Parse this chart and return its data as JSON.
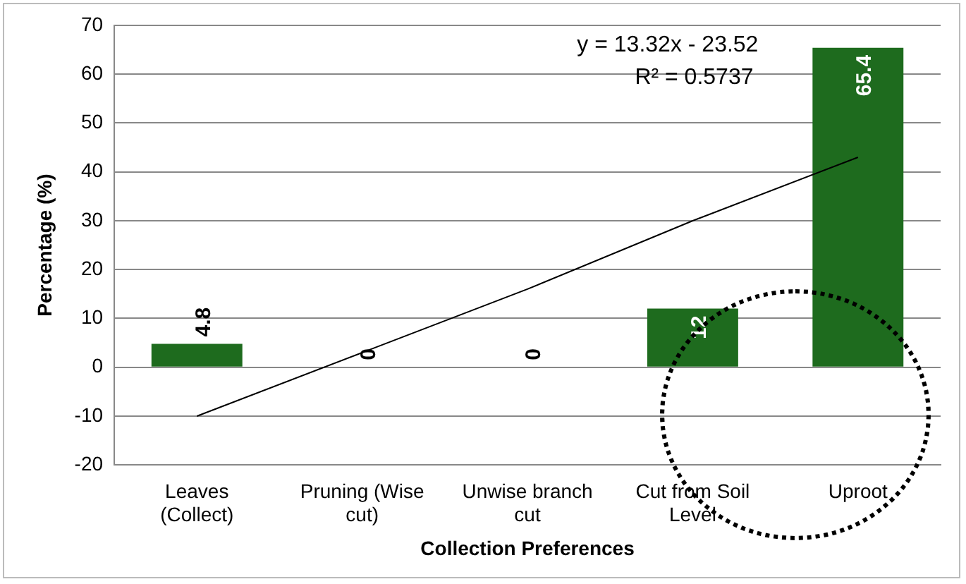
{
  "chart_data": {
    "type": "bar",
    "xlabel": "Collection Preferences",
    "ylabel": "Percentage (%)",
    "categories": [
      "Leaves (Collect)",
      "Pruning (Wise cut)",
      "Unwise branch cut",
      "Cut from Soil Level",
      "Uproot"
    ],
    "series": [
      {
        "color": "#1e6b1e",
        "values": [
          4.8,
          0,
          0,
          12,
          65.4
        ],
        "value_labels": [
          "4.8",
          "0",
          "0",
          "12",
          "65.4"
        ]
      },
      {
        "type": "line",
        "color": "#000000",
        "x": [
          "Leaves (Collect)",
          "Pruning (Wise cut)",
          "Unwise branch cut",
          "Cut from Soil Level",
          "Uproot"
        ],
        "values": [
          -10,
          3,
          16,
          30,
          43
        ]
      }
    ],
    "ylim": [
      -20,
      70
    ],
    "yticks": [
      -20,
      -10,
      0,
      10,
      20,
      30,
      40,
      50,
      60,
      70
    ],
    "grid": "y",
    "legend": false,
    "marker": "none",
    "annotations": [
      "y = 13.32x - 23.52",
      "R² = 0.5737"
    ]
  }
}
